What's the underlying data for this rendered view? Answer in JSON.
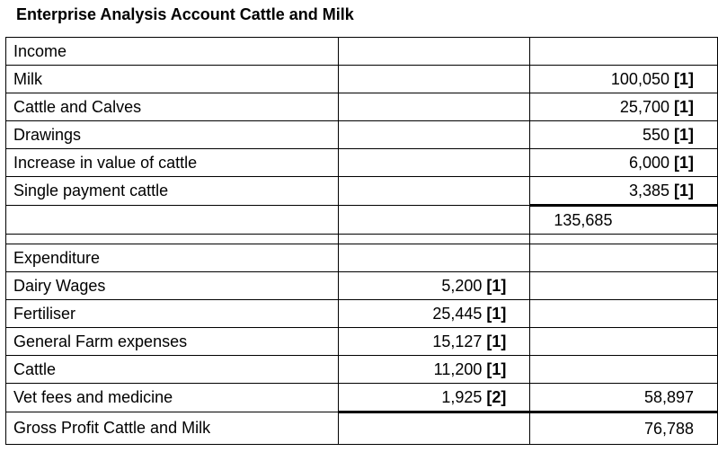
{
  "title": "Enterprise Analysis Account Cattle and Milk",
  "income": {
    "heading": "Income",
    "items": [
      {
        "label": "Milk",
        "value": "100,050",
        "mark": "[1]"
      },
      {
        "label": "Cattle and Calves",
        "value": "25,700",
        "mark": "[1]"
      },
      {
        "label": "Drawings",
        "value": "550",
        "mark": "[1]"
      },
      {
        "label": "Increase in value of cattle",
        "value": "6,000",
        "mark": "[1]"
      },
      {
        "label": "Single payment cattle",
        "value": "3,385",
        "mark": "[1]"
      }
    ],
    "total": "135,685"
  },
  "expenditure": {
    "heading": "Expenditure",
    "items": [
      {
        "label": "Dairy Wages",
        "value": "5,200",
        "mark": "[1]"
      },
      {
        "label": "Fertiliser",
        "value": "25,445",
        "mark": "[1]"
      },
      {
        "label": "General Farm expenses",
        "value": "15,127",
        "mark": "[1]"
      },
      {
        "label": "Cattle",
        "value": "11,200",
        "mark": "[1]"
      },
      {
        "label": "Vet fees and medicine",
        "value": "1,925",
        "mark": "[2]"
      }
    ],
    "total": "58,897"
  },
  "gross_profit": {
    "label": "Gross Profit Cattle and Milk",
    "value": "76,788"
  }
}
